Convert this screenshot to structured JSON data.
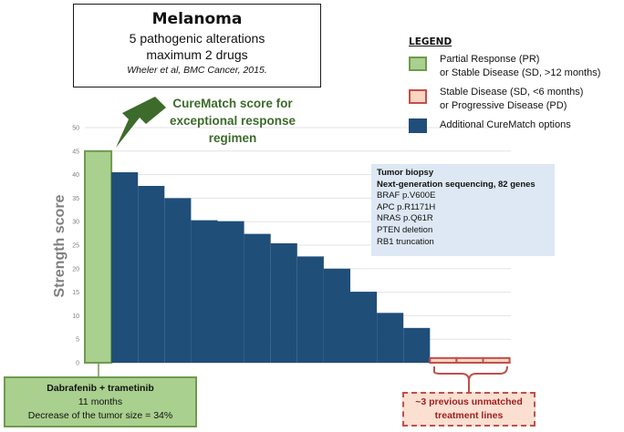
{
  "title_box": {
    "title": "Melanoma",
    "line2": "5 pathogenic alterations",
    "line3": "maximum 2 drugs",
    "citation": "Wheler et al, BMC Cancer, 2015."
  },
  "legend": {
    "title": "LEGEND",
    "items": [
      {
        "text1": "Partial Response (PR)",
        "text2": "or Stable Disease (SD, >12 months)",
        "color": "#a9d08e",
        "border": "#6f9a4f"
      },
      {
        "text1": "Stable Disease (SD, <6 months)",
        "text2": "or Progressive Disease (PD)",
        "color": "#fbd5c0",
        "border": "#c0504d"
      },
      {
        "text1": "Additional CureMatch options",
        "text2": "",
        "color": "#1f4e79",
        "border": "#1f4e79"
      }
    ]
  },
  "curematch_label": {
    "line1": "CureMatch score for",
    "line2": "exceptional response",
    "line3": "regimen"
  },
  "tumor_biopsy": {
    "title": "Tumor biopsy",
    "subtitle": "Next-generation sequencing, 82 genes",
    "alterations": [
      "BRAF p.V600E",
      "APC p.R1171H",
      "NRAS p.Q61R",
      "PTEN deletion",
      "RB1 truncation"
    ]
  },
  "dabrafenib_box": {
    "line1": "Dabrafenib + trametinib",
    "line2": "11 months",
    "line3": "Decrease of the tumor size = 34%"
  },
  "previous_box": {
    "line1": "~3 previous unmatched",
    "line2": "treatment lines"
  },
  "chart_data": {
    "type": "bar",
    "ylabel": "Strength score",
    "xlabel": "",
    "ylim": [
      0,
      50
    ],
    "yticks": [
      0,
      5,
      10,
      15,
      20,
      25,
      30,
      35,
      40,
      45,
      50
    ],
    "grid": true,
    "series": [
      {
        "values": [
          45.0,
          40.5,
          37.6,
          35.0,
          30.3,
          30.1,
          27.4,
          25.4,
          22.6,
          20.0,
          15.1,
          10.6,
          7.4,
          1.0,
          1.0,
          1.0
        ],
        "colors": [
          "#a9d08e",
          "#1f4e79",
          "#1f4e79",
          "#1f4e79",
          "#1f4e79",
          "#1f4e79",
          "#1f4e79",
          "#1f4e79",
          "#1f4e79",
          "#1f4e79",
          "#1f4e79",
          "#1f4e79",
          "#1f4e79",
          "#fbd5c0",
          "#fbd5c0",
          "#fbd5c0"
        ]
      }
    ]
  }
}
